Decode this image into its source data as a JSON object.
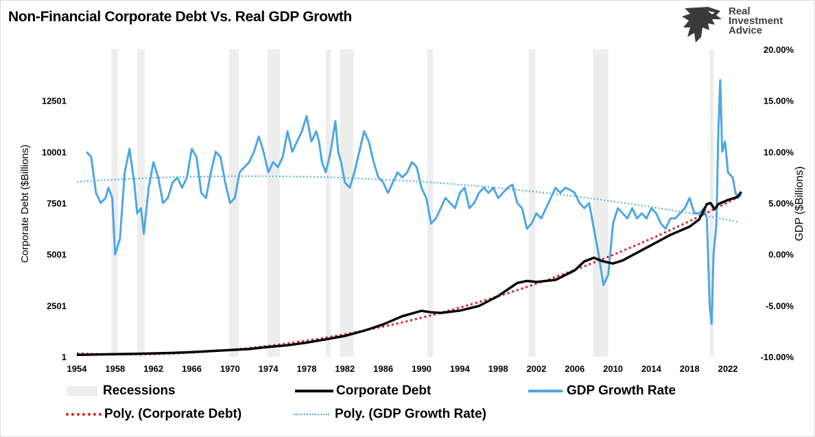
{
  "chart_data": {
    "type": "line",
    "title": "Non-Financial Corporate Debt Vs. Real GDP Growth",
    "y_left_label": "Corporate Debt ($Billions)",
    "y_right_label": "GDP ($Billions)",
    "x_range": [
      1954,
      2023.5
    ],
    "x_ticks": [
      "1954",
      "1958",
      "1962",
      "1966",
      "1970",
      "1974",
      "1978",
      "1982",
      "1986",
      "1990",
      "1994",
      "1998",
      "2002",
      "2006",
      "2010",
      "2014",
      "2018",
      "2022"
    ],
    "y_left_range": [
      1,
      15001
    ],
    "y_left_ticks": [
      "1",
      "2501",
      "5001",
      "7501",
      "10001",
      "12501"
    ],
    "y_right_range": [
      -10,
      20
    ],
    "y_right_ticks": [
      "-10.00%",
      "-5.00%",
      "0.00%",
      "5.00%",
      "10.00%",
      "15.00%",
      "20.00%"
    ],
    "grid": false,
    "legend_position": "bottom",
    "colors": {
      "recessions": "#ededed",
      "corporate_debt": "#000000",
      "gdp_growth": "#4da6e3",
      "poly_debt": "#d92020",
      "poly_gdp": "#4da6e3"
    },
    "recessions": [
      [
        1957.6,
        1958.3
      ],
      [
        1960.3,
        1961.1
      ],
      [
        1969.9,
        1970.9
      ],
      [
        1973.9,
        1975.2
      ],
      [
        1980.0,
        1980.5
      ],
      [
        1981.5,
        1982.9
      ],
      [
        1990.6,
        1991.2
      ],
      [
        2001.2,
        2001.9
      ],
      [
        2007.9,
        2009.5
      ],
      [
        2020.1,
        2020.4
      ]
    ],
    "series": [
      {
        "name": "Corporate Debt",
        "points": [
          [
            1954,
            90
          ],
          [
            1956,
            110
          ],
          [
            1958,
            125
          ],
          [
            1960,
            145
          ],
          [
            1962,
            165
          ],
          [
            1964,
            190
          ],
          [
            1966,
            230
          ],
          [
            1968,
            275
          ],
          [
            1970,
            330
          ],
          [
            1972,
            380
          ],
          [
            1974,
            480
          ],
          [
            1976,
            560
          ],
          [
            1978,
            690
          ],
          [
            1980,
            850
          ],
          [
            1982,
            1020
          ],
          [
            1984,
            1270
          ],
          [
            1986,
            1580
          ],
          [
            1988,
            1980
          ],
          [
            1990,
            2240
          ],
          [
            1991,
            2170
          ],
          [
            1992,
            2140
          ],
          [
            1994,
            2250
          ],
          [
            1996,
            2480
          ],
          [
            1998,
            2960
          ],
          [
            2000,
            3600
          ],
          [
            2001,
            3700
          ],
          [
            2002,
            3650
          ],
          [
            2004,
            3750
          ],
          [
            2006,
            4220
          ],
          [
            2007,
            4650
          ],
          [
            2008,
            4830
          ],
          [
            2009,
            4650
          ],
          [
            2010,
            4550
          ],
          [
            2011,
            4700
          ],
          [
            2012,
            4950
          ],
          [
            2014,
            5450
          ],
          [
            2016,
            5950
          ],
          [
            2018,
            6350
          ],
          [
            2019,
            6700
          ],
          [
            2019.8,
            7450
          ],
          [
            2020.2,
            7500
          ],
          [
            2020.6,
            7200
          ],
          [
            2021,
            7450
          ],
          [
            2022,
            7650
          ],
          [
            2023,
            7800
          ],
          [
            2023.4,
            8050
          ]
        ]
      },
      {
        "name": "GDP Growth Rate",
        "points": [
          [
            1955,
            10
          ],
          [
            1955.5,
            9.5
          ],
          [
            1956,
            6
          ],
          [
            1956.5,
            5
          ],
          [
            1957,
            5.5
          ],
          [
            1957.3,
            6.5
          ],
          [
            1957.7,
            5.5
          ],
          [
            1958,
            0
          ],
          [
            1958.5,
            1.5
          ],
          [
            1959,
            8
          ],
          [
            1959.5,
            10.3
          ],
          [
            1960,
            7
          ],
          [
            1960.3,
            4
          ],
          [
            1960.7,
            4.5
          ],
          [
            1961,
            2
          ],
          [
            1961.5,
            6.5
          ],
          [
            1962,
            9
          ],
          [
            1962.5,
            7.5
          ],
          [
            1963,
            5
          ],
          [
            1963.5,
            5.5
          ],
          [
            1964,
            7
          ],
          [
            1964.5,
            7.5
          ],
          [
            1965,
            6.5
          ],
          [
            1965.5,
            7.5
          ],
          [
            1966,
            10.3
          ],
          [
            1966.5,
            9.5
          ],
          [
            1967,
            6
          ],
          [
            1967.5,
            5.5
          ],
          [
            1968,
            8
          ],
          [
            1968.5,
            10
          ],
          [
            1969,
            9.5
          ],
          [
            1969.5,
            7
          ],
          [
            1970,
            5
          ],
          [
            1970.5,
            5.5
          ],
          [
            1971,
            8
          ],
          [
            1971.5,
            8.5
          ],
          [
            1972,
            9
          ],
          [
            1972.5,
            10
          ],
          [
            1973,
            11.5
          ],
          [
            1973.5,
            10
          ],
          [
            1974,
            8
          ],
          [
            1974.5,
            9
          ],
          [
            1975,
            8.5
          ],
          [
            1975.5,
            9.5
          ],
          [
            1976,
            12
          ],
          [
            1976.5,
            10
          ],
          [
            1977,
            11
          ],
          [
            1977.5,
            12
          ],
          [
            1978,
            13.5
          ],
          [
            1978.5,
            11
          ],
          [
            1979,
            12
          ],
          [
            1979.3,
            11
          ],
          [
            1979.6,
            9
          ],
          [
            1980,
            8
          ],
          [
            1980.5,
            10
          ],
          [
            1981,
            13
          ],
          [
            1981.3,
            10
          ],
          [
            1981.6,
            9
          ],
          [
            1982,
            7
          ],
          [
            1982.5,
            6.5
          ],
          [
            1983,
            8
          ],
          [
            1983.5,
            10
          ],
          [
            1984,
            12
          ],
          [
            1984.5,
            11
          ],
          [
            1985,
            9
          ],
          [
            1985.5,
            7.5
          ],
          [
            1986,
            7
          ],
          [
            1986.5,
            6
          ],
          [
            1987,
            7
          ],
          [
            1987.5,
            8
          ],
          [
            1988,
            7.5
          ],
          [
            1988.5,
            8
          ],
          [
            1989,
            9
          ],
          [
            1989.5,
            8.5
          ],
          [
            1990,
            6.5
          ],
          [
            1990.5,
            5.5
          ],
          [
            1991,
            3
          ],
          [
            1991.5,
            3.5
          ],
          [
            1992,
            4.5
          ],
          [
            1992.5,
            5.5
          ],
          [
            1993,
            5
          ],
          [
            1993.5,
            4.5
          ],
          [
            1994,
            6
          ],
          [
            1994.5,
            6.5
          ],
          [
            1995,
            4.5
          ],
          [
            1995.5,
            5
          ],
          [
            1996,
            6
          ],
          [
            1996.5,
            6.5
          ],
          [
            1997,
            6
          ],
          [
            1997.5,
            6.5
          ],
          [
            1998,
            5.5
          ],
          [
            1998.5,
            6
          ],
          [
            1999,
            6.5
          ],
          [
            1999.5,
            6.8
          ],
          [
            2000,
            5
          ],
          [
            2000.5,
            4.5
          ],
          [
            2001,
            2.5
          ],
          [
            2001.5,
            3
          ],
          [
            2002,
            4
          ],
          [
            2002.5,
            3.5
          ],
          [
            2003,
            4.5
          ],
          [
            2003.5,
            5.5
          ],
          [
            2004,
            6.5
          ],
          [
            2004.5,
            6
          ],
          [
            2005,
            6.5
          ],
          [
            2005.5,
            6.3
          ],
          [
            2006,
            6
          ],
          [
            2006.5,
            5
          ],
          [
            2007,
            4.5
          ],
          [
            2007.5,
            5
          ],
          [
            2008,
            2.5
          ],
          [
            2008.5,
            0
          ],
          [
            2009,
            -3
          ],
          [
            2009.5,
            -2
          ],
          [
            2010,
            3
          ],
          [
            2010.5,
            4.5
          ],
          [
            2011,
            4
          ],
          [
            2011.5,
            3.5
          ],
          [
            2012,
            4.5
          ],
          [
            2012.5,
            3.5
          ],
          [
            2013,
            4
          ],
          [
            2013.5,
            3.5
          ],
          [
            2014,
            4.5
          ],
          [
            2014.5,
            4
          ],
          [
            2015,
            3
          ],
          [
            2015.5,
            2.5
          ],
          [
            2016,
            3.5
          ],
          [
            2016.5,
            3.5
          ],
          [
            2017,
            4
          ],
          [
            2017.5,
            4.5
          ],
          [
            2018,
            5.5
          ],
          [
            2018.5,
            4
          ],
          [
            2019,
            4
          ],
          [
            2019.5,
            4.5
          ],
          [
            2019.8,
            3.5
          ],
          [
            2020.1,
            -5
          ],
          [
            2020.3,
            -6.8
          ],
          [
            2020.5,
            0
          ],
          [
            2020.8,
            3
          ],
          [
            2021,
            12
          ],
          [
            2021.2,
            17
          ],
          [
            2021.4,
            10
          ],
          [
            2021.7,
            11
          ],
          [
            2022,
            8
          ],
          [
            2022.5,
            7.5
          ],
          [
            2022.8,
            6
          ],
          [
            2023,
            5.5
          ],
          [
            2023.4,
            5.8
          ]
        ]
      },
      {
        "name": "Poly. (Corporate Debt)"
      },
      {
        "name": "Poly. (GDP Growth Rate)"
      }
    ]
  },
  "logo": {
    "line1": "Real",
    "line2": "Investment",
    "line3": "Advice"
  },
  "legend": {
    "recessions": "Recessions",
    "corporate_debt": "Corporate Debt",
    "gdp_growth": "GDP Growth Rate",
    "poly_debt": "Poly. (Corporate Debt)",
    "poly_gdp": "Poly. (GDP Growth Rate)"
  }
}
